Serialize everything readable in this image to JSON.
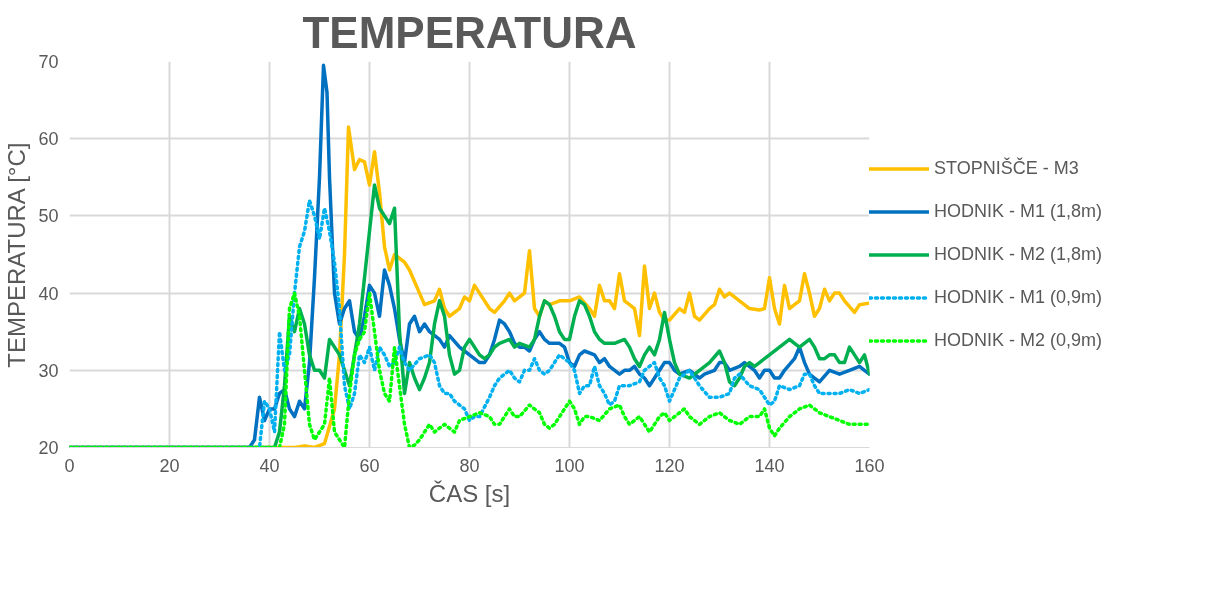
{
  "chart_data": {
    "type": "line",
    "title": "TEMPERATURA",
    "xlabel": "ČAS [s]",
    "ylabel": "TEMPERATURA [°C]",
    "xlim": [
      0,
      160
    ],
    "ylim": [
      20,
      70
    ],
    "xticks": [
      0,
      20,
      40,
      60,
      80,
      100,
      120,
      140,
      160
    ],
    "yticks": [
      20,
      30,
      40,
      50,
      60,
      70
    ],
    "grid": true,
    "legend": "right",
    "series": [
      {
        "name": "STOPNIŠČE - M3",
        "color": "#ffc000",
        "line_style": "solid",
        "x": [
          0,
          45,
          47,
          49,
          51,
          53,
          54,
          55,
          55.8,
          57,
          58,
          59,
          60,
          61,
          62,
          63,
          64,
          65,
          67,
          68,
          70,
          71,
          73,
          74,
          75,
          76,
          78,
          79,
          80,
          81,
          82,
          84,
          85,
          87,
          88,
          89,
          91,
          92,
          93,
          94,
          95,
          96,
          98,
          100,
          102,
          104,
          105,
          106,
          107,
          108,
          109,
          110,
          111,
          112,
          113,
          114,
          115,
          116,
          117,
          118,
          119,
          120,
          122,
          123,
          124,
          125,
          126,
          128,
          129,
          130,
          131,
          132,
          134,
          136,
          138,
          139,
          140,
          141,
          142,
          143,
          144,
          145,
          146,
          147,
          148,
          149,
          150,
          151,
          152,
          153,
          154,
          155,
          157,
          158,
          160
        ],
        "values": [
          20,
          20,
          20.2,
          20,
          20.5,
          25,
          32,
          45,
          61.5,
          56,
          57.3,
          57,
          54,
          58.3,
          53,
          46,
          43,
          45,
          44,
          43,
          40,
          38.5,
          39,
          40.5,
          38,
          37,
          38,
          39.5,
          39,
          41,
          40,
          38,
          37.5,
          39,
          40,
          39,
          40,
          45.5,
          38,
          37,
          39,
          38.5,
          39,
          39,
          39.5,
          38,
          37,
          41,
          39,
          39,
          38,
          42.5,
          39,
          38.5,
          38,
          34.5,
          43.5,
          38,
          40,
          37.5,
          36.5,
          36.5,
          38,
          37.5,
          40,
          37,
          36.5,
          38,
          38.5,
          40.5,
          39.5,
          40,
          39,
          38,
          37.8,
          38,
          42,
          38,
          36,
          41,
          38,
          38.5,
          39,
          42.5,
          40,
          37,
          38,
          40.5,
          39,
          40,
          40,
          39,
          37.5,
          38.5,
          38.7
        ]
      },
      {
        "name": "HODNIK - M1 (1,8m)",
        "color": "#0070c0",
        "line_style": "solid",
        "x": [
          0,
          36,
          37,
          38,
          39,
          40,
          41,
          42,
          43,
          44,
          45,
          46,
          47,
          48,
          49,
          50,
          50.8,
          51.5,
          52,
          53,
          54,
          55,
          56,
          57,
          58,
          59,
          60,
          61,
          62,
          63,
          64,
          65,
          66,
          67,
          68,
          69,
          70,
          71,
          72,
          74,
          75,
          76,
          78,
          79,
          80,
          82,
          83,
          84,
          85,
          86,
          87,
          88,
          89,
          90,
          91,
          92,
          93,
          94,
          95,
          96,
          98,
          99,
          100,
          101,
          102,
          103,
          105,
          106,
          107,
          108,
          110,
          111,
          112,
          113,
          114,
          115,
          116,
          117,
          118,
          119,
          120,
          121,
          122,
          124,
          125,
          126,
          127,
          129,
          130,
          131,
          132,
          134,
          135,
          137,
          138,
          139,
          140,
          141,
          142,
          143,
          145,
          146,
          147,
          148,
          149,
          150,
          152,
          154,
          156,
          158,
          159,
          160
        ],
        "values": [
          20,
          20,
          21,
          26.5,
          23.5,
          25,
          25,
          27,
          27.5,
          25,
          24,
          26,
          25,
          31,
          42,
          55,
          69.5,
          66,
          55,
          40,
          36,
          38,
          39,
          35,
          34,
          37,
          41,
          40,
          37,
          43,
          41,
          38,
          34,
          31,
          36,
          37,
          35,
          36,
          35,
          34,
          33,
          34.5,
          33,
          32.5,
          32,
          31,
          31,
          32,
          34,
          36.5,
          36,
          35,
          33.5,
          33,
          33,
          32.5,
          34,
          35,
          34,
          33.5,
          33.5,
          33,
          31,
          30.5,
          32,
          32.5,
          32,
          31,
          31.5,
          30.5,
          29.5,
          30,
          30,
          30.5,
          29.5,
          29,
          28,
          29,
          30,
          31,
          31,
          30,
          29.5,
          30,
          29.5,
          29,
          29.5,
          30,
          31,
          31,
          30,
          30.5,
          31,
          30,
          29,
          30,
          30,
          29,
          29,
          30,
          31.5,
          33,
          31,
          29.5,
          29,
          28.5,
          30,
          29.5,
          30,
          30.5,
          30,
          29.5
        ]
      },
      {
        "name": "HODNIK - M2 (1,8m)",
        "color": "#00b050",
        "line_style": "solid",
        "x": [
          0,
          41,
          42,
          43,
          44,
          45,
          46,
          47,
          48,
          49,
          50,
          51,
          52,
          53,
          54,
          55,
          56,
          57,
          58,
          59,
          60,
          61,
          62,
          63,
          64,
          65,
          66,
          67,
          68,
          69,
          70,
          71,
          72,
          73,
          74,
          75,
          76,
          77,
          78,
          79,
          80,
          81,
          82,
          83,
          84,
          85,
          86,
          88,
          89,
          90,
          92,
          93,
          94,
          95,
          96,
          97,
          98,
          99,
          100,
          101,
          102,
          103,
          104,
          105,
          106,
          107,
          109,
          111,
          112,
          113,
          114,
          115,
          116,
          117,
          118,
          119,
          120,
          121,
          122,
          124,
          126,
          128,
          130,
          131,
          132,
          133,
          134,
          135,
          136,
          137,
          138,
          139,
          140,
          142,
          144,
          145,
          146,
          148,
          149,
          150,
          151,
          152,
          153,
          154,
          155,
          156,
          157,
          158,
          159,
          160
        ],
        "values": [
          20,
          20,
          22,
          28,
          37,
          35,
          38,
          36,
          32,
          30,
          30,
          29,
          34,
          33,
          32,
          30,
          28,
          32,
          36,
          42,
          48,
          54,
          51,
          50,
          49,
          51,
          35,
          27,
          31,
          29,
          27.5,
          29,
          31,
          36,
          39,
          37,
          32,
          29.5,
          30,
          33,
          34,
          33,
          32,
          31.5,
          32,
          33,
          33.5,
          34,
          33,
          33.5,
          33,
          34,
          37,
          39,
          38.5,
          37,
          35,
          34,
          34,
          37,
          39,
          38.5,
          37,
          35,
          34,
          33.5,
          33.5,
          34,
          33,
          31.5,
          30.5,
          32,
          33,
          32,
          34,
          37.5,
          34,
          31,
          29.5,
          29,
          30,
          31,
          32.5,
          31,
          28.5,
          28,
          29,
          30.5,
          31,
          30.5,
          31,
          31.5,
          32,
          33,
          34,
          33.5,
          33,
          34,
          33,
          31.5,
          31.5,
          32,
          32,
          31,
          31,
          33,
          32,
          31,
          32,
          29.5
        ]
      },
      {
        "name": "HODNIK - M1 (0,9m)",
        "color": "#00b0f0",
        "line_style": "dotted",
        "x": [
          0,
          38,
          39,
          40,
          41,
          42,
          43,
          44,
          45,
          46,
          47,
          48,
          49,
          50,
          51,
          52,
          53,
          54,
          55,
          56,
          57,
          58,
          59,
          60,
          61,
          62,
          63,
          64,
          65,
          66,
          67,
          68,
          70,
          72,
          73,
          74,
          75,
          76,
          77,
          78,
          79,
          80,
          81,
          82,
          84,
          85,
          86,
          87,
          88,
          89,
          90,
          91,
          92,
          93,
          94,
          95,
          96,
          98,
          99,
          100,
          101,
          102,
          103,
          104,
          105,
          106,
          107,
          108,
          109,
          110,
          112,
          114,
          115,
          116,
          117,
          118,
          119,
          120,
          121,
          122,
          124,
          125,
          126,
          128,
          130,
          132,
          133,
          134,
          136,
          138,
          140,
          141,
          142,
          144,
          146,
          147,
          148,
          149,
          150,
          152,
          154,
          156,
          158,
          160
        ],
        "values": [
          20,
          20,
          26,
          25,
          22,
          35,
          30,
          32,
          40,
          46,
          48,
          52,
          50,
          47,
          51,
          48,
          44,
          38,
          28,
          25,
          27,
          32,
          31,
          33,
          30,
          33,
          32,
          30.5,
          31,
          33,
          31,
          30,
          31.5,
          32,
          31,
          28,
          27,
          27,
          26,
          25.5,
          25,
          23.5,
          24,
          24,
          26.5,
          28,
          29,
          29.5,
          30,
          29,
          28.5,
          30,
          30,
          31.5,
          30,
          29.5,
          30,
          32,
          31.5,
          31,
          30,
          27,
          28,
          28,
          30.5,
          28,
          27,
          25.5,
          26,
          28,
          28,
          28.5,
          30,
          30.5,
          31,
          29,
          28,
          26,
          27.5,
          29,
          30,
          29,
          28,
          26.5,
          26.5,
          27,
          29,
          29.5,
          28,
          27.5,
          25.5,
          26,
          28,
          27.5,
          28,
          29.5,
          29.5,
          28,
          27,
          27,
          27,
          27.5,
          27,
          27.5
        ]
      },
      {
        "name": "HODNIK - M2 (0,9m)",
        "color": "#00ff00",
        "line_style": "dotted",
        "x": [
          0,
          42,
          43,
          44,
          45,
          46,
          47,
          48,
          49,
          50,
          51,
          52,
          53,
          54,
          55,
          56,
          57,
          58,
          59,
          60,
          61,
          62,
          63,
          64,
          65,
          66,
          67,
          68,
          69,
          70,
          71,
          72,
          73,
          74,
          75,
          76,
          77,
          78,
          80,
          82,
          84,
          85,
          86,
          87,
          88,
          89,
          90,
          92,
          94,
          95,
          96,
          97,
          98,
          100,
          101,
          102,
          103,
          104,
          106,
          108,
          110,
          111,
          112,
          114,
          116,
          118,
          119,
          120,
          122,
          123,
          124,
          126,
          128,
          130,
          132,
          134,
          136,
          138,
          139,
          140,
          141,
          142,
          144,
          146,
          148,
          150,
          152,
          154,
          156,
          158,
          160
        ],
        "values": [
          20,
          20,
          23,
          38,
          40,
          37,
          30,
          23,
          21,
          22,
          23,
          29,
          22,
          21,
          20,
          27,
          32,
          34,
          35,
          40,
          35,
          30,
          27,
          26,
          33,
          28,
          23,
          20,
          20.3,
          21,
          22,
          23,
          22,
          22.5,
          23,
          22.5,
          22,
          23.5,
          24,
          24.5,
          24,
          23,
          23,
          24,
          25,
          24,
          24,
          25.5,
          24.5,
          23,
          22.5,
          23,
          24,
          26,
          25,
          23,
          24,
          24,
          23.5,
          25,
          25.5,
          24,
          23,
          24,
          22,
          24,
          24.5,
          23.5,
          24.5,
          25,
          24,
          23,
          24,
          24.5,
          23.5,
          23,
          24,
          24,
          25,
          22.5,
          21.5,
          22.5,
          24,
          25,
          25.5,
          24.5,
          24,
          23.5,
          23,
          23,
          23
        ]
      }
    ]
  }
}
